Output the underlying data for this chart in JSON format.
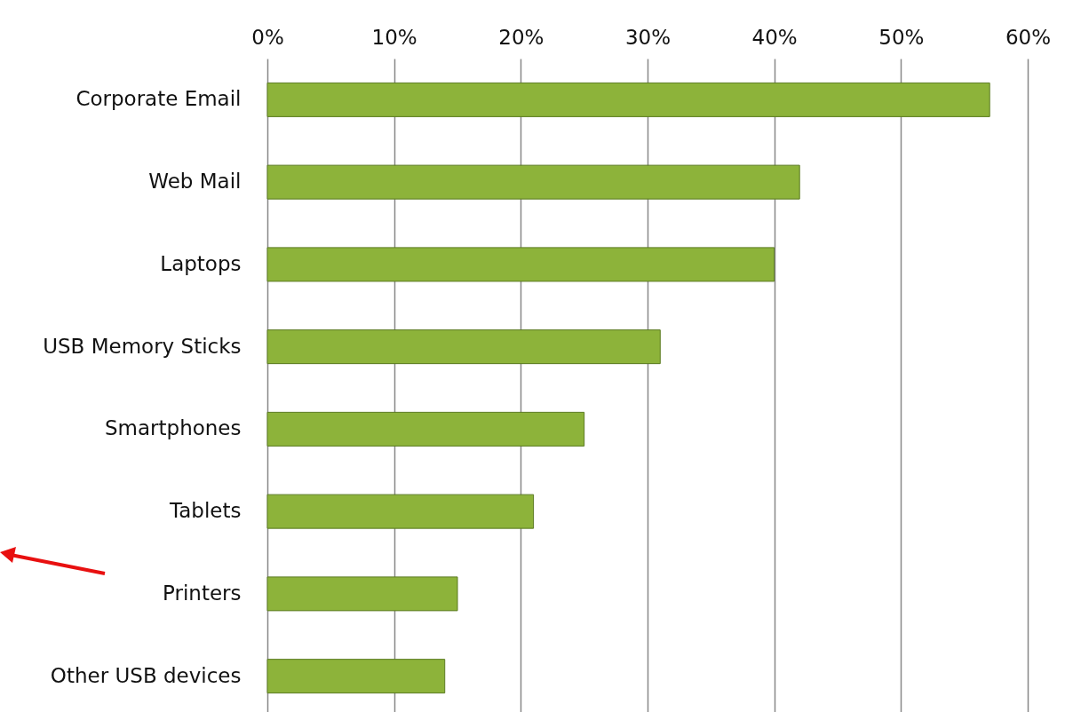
{
  "chart_data": {
    "type": "bar",
    "orientation": "horizontal",
    "categories": [
      "Corporate Email",
      "Web Mail",
      "Laptops",
      "USB Memory Sticks",
      "Smartphones",
      "Tablets",
      "Printers",
      "Other USB devices"
    ],
    "values": [
      57,
      42,
      40,
      31,
      25,
      21,
      15,
      14
    ],
    "color": "#8db33a",
    "xlim": [
      0,
      60
    ],
    "xticks": [
      {
        "value": 0,
        "label": "0%"
      },
      {
        "value": 10,
        "label": "10%"
      },
      {
        "value": 20,
        "label": "20%"
      },
      {
        "value": 30,
        "label": "30%"
      },
      {
        "value": 40,
        "label": "40%"
      },
      {
        "value": 50,
        "label": "50%"
      },
      {
        "value": 60,
        "label": "60%"
      }
    ],
    "grid": "x"
  }
}
